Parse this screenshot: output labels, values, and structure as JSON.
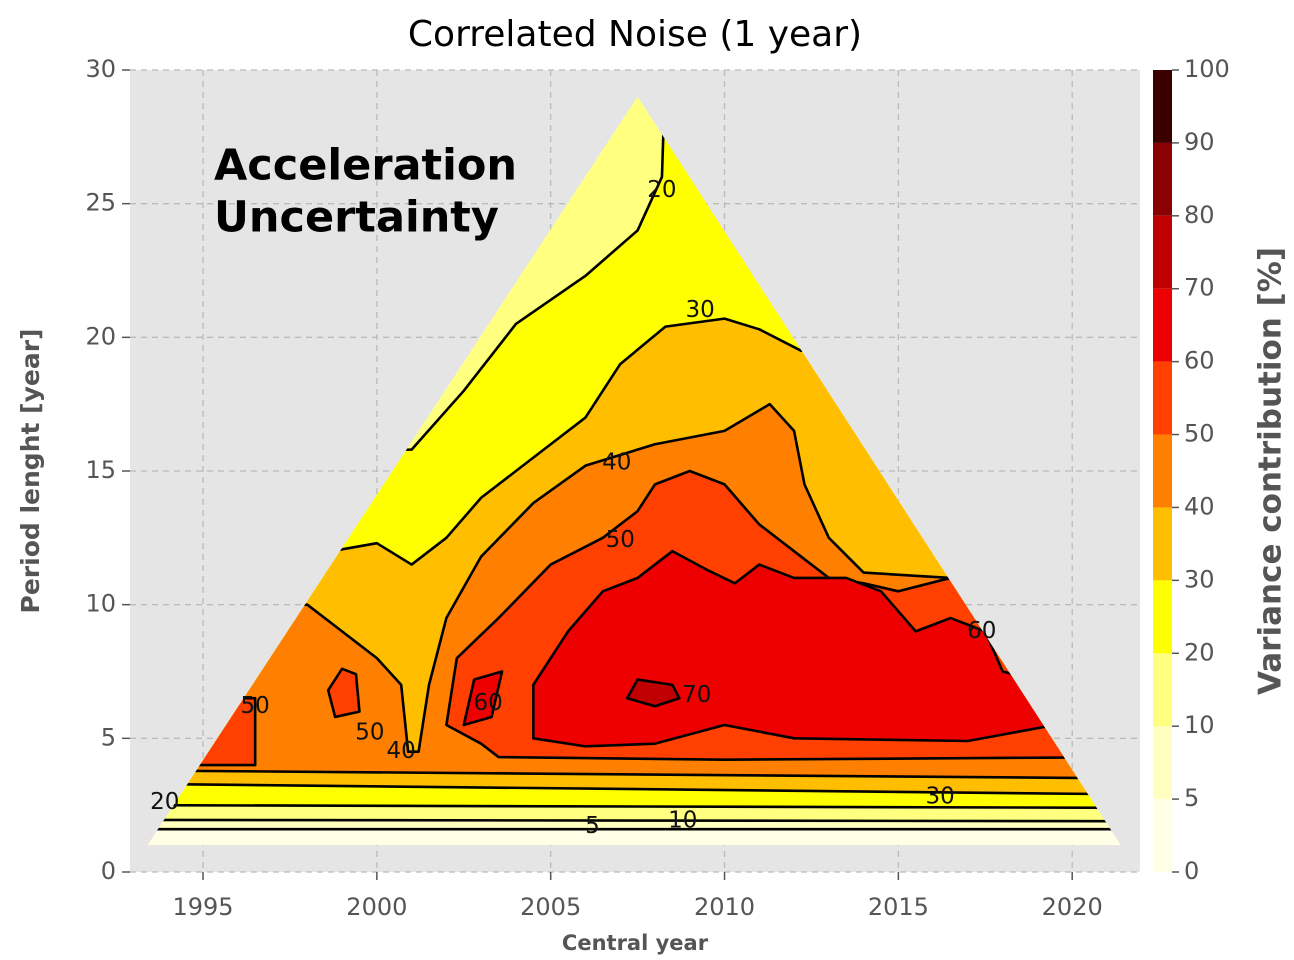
{
  "chart_data": {
    "type": "contour",
    "title": "Correlated Noise (1 year)",
    "xlabel": "Central year",
    "ylabel": "Period lenght [year]",
    "annotation": [
      "Acceleration",
      "Uncertainty"
    ],
    "xlim": [
      1992.9,
      2021.95
    ],
    "ylim": [
      0,
      30
    ],
    "xticks": [
      1995,
      2000,
      2005,
      2010,
      2015,
      2020
    ],
    "yticks": [
      0,
      5,
      10,
      15,
      20,
      25,
      30
    ],
    "grid": true,
    "levels": [
      0,
      5,
      10,
      20,
      30,
      40,
      50,
      60,
      70,
      80,
      90,
      100
    ],
    "colors": [
      "#ffffe6",
      "#ffffbf",
      "#ffff80",
      "#ffff00",
      "#ffbf00",
      "#ff8000",
      "#ff4000",
      "#ee0000",
      "#c00000",
      "#8b0000",
      "#3a0000"
    ],
    "colorbar": {
      "label": "Variance contribution [%]",
      "ticks": [
        0,
        5,
        10,
        20,
        30,
        40,
        50,
        60,
        70,
        80,
        90,
        100
      ]
    },
    "region": {
      "x": [
        1993.4,
        2007.5,
        2021.4
      ],
      "y": [
        1,
        29,
        1
      ]
    },
    "bands": [
      {
        "level": 5,
        "x": [
          1993,
          2022,
          2022,
          1993
        ],
        "y": [
          1.6,
          1.6,
          30,
          30
        ]
      },
      {
        "level": 10,
        "x": [
          1993,
          2022,
          2022,
          1993
        ],
        "y": [
          1.95,
          1.9,
          30,
          30
        ]
      },
      {
        "level": 20,
        "x": [
          1993,
          2022,
          2022,
          2008.3,
          2008.2,
          2007.5,
          2006,
          2004,
          2002.5,
          2001,
          1993
        ],
        "y": [
          2.5,
          2.4,
          30,
          30,
          26,
          24,
          22.3,
          20.5,
          18,
          15.8,
          15.8
        ]
      },
      {
        "level": 30,
        "x": [
          1993,
          2022,
          2022,
          2012.2,
          2011,
          2010,
          2008.3,
          2007,
          2006,
          2004.5,
          2003,
          2002,
          2001,
          2000,
          1998.7,
          1993
        ],
        "y": [
          3.3,
          2.9,
          19.5,
          19.5,
          20.3,
          20.7,
          20.4,
          19,
          17,
          15.5,
          14,
          12.5,
          11.5,
          12.3,
          12,
          12
        ]
      },
      {
        "level": 40,
        "x": [
          1993,
          2022,
          2022,
          2016.5,
          2014,
          2013,
          2012.3,
          2012,
          2011.3,
          2010,
          2008,
          2006,
          2004.5,
          2003,
          2002,
          2001.5,
          2001.2,
          2000.9,
          2000.7,
          2000,
          1999,
          1998,
          1993
        ],
        "y": [
          3.8,
          3.5,
          11,
          11,
          11.2,
          12.5,
          14.5,
          16.5,
          17.5,
          16.5,
          16,
          15.2,
          13.8,
          11.8,
          9.5,
          7,
          4.5,
          4.5,
          7,
          8,
          9,
          10,
          10
        ]
      },
      {
        "level": 50,
        "x": [
          2003,
          2002,
          2002.3,
          2003.5,
          2005,
          2006.5,
          2007.5,
          2008,
          2009,
          2010,
          2011,
          2012,
          2013,
          2014,
          2015,
          2016.5,
          2017,
          2018.3,
          2022,
          2022,
          2010,
          2003.5
        ],
        "y": [
          4.8,
          5.5,
          8,
          9.5,
          11.5,
          12.5,
          13.5,
          14.5,
          15,
          14.5,
          13,
          12,
          11,
          10.8,
          10.5,
          11,
          10,
          9.5,
          9,
          4.3,
          4.2,
          4.3
        ]
      },
      {
        "level": 50,
        "x": [
          1993,
          1996.5,
          1996.5,
          1993
        ],
        "y": [
          4,
          4,
          6.5,
          6.5
        ]
      },
      {
        "level": 50,
        "x": [
          1998.8,
          1999.5,
          1999.4,
          1999,
          1998.6
        ],
        "y": [
          5.8,
          6,
          7.4,
          7.6,
          6.8
        ]
      },
      {
        "level": 60,
        "x": [
          2006,
          2004.5,
          2004.5,
          2005.5,
          2006.5,
          2007.5,
          2008.5,
          2009.5,
          2010.3,
          2011,
          2012,
          2013.5,
          2014.5,
          2015.5,
          2016.5,
          2017.5,
          2018,
          2019.5,
          2022,
          2022,
          2019.5,
          2017,
          2012,
          2010,
          2008
        ],
        "y": [
          4.7,
          5,
          7,
          9,
          10.5,
          11,
          12,
          11.3,
          10.8,
          11.5,
          11,
          11,
          10.5,
          9,
          9.5,
          9,
          7.5,
          7,
          6,
          5,
          5.5,
          4.9,
          5,
          5.5,
          4.8
        ]
      },
      {
        "level": 60,
        "x": [
          2002.5,
          2003.3,
          2003.6,
          2002.8
        ],
        "y": [
          5.5,
          5.8,
          7.5,
          7.2
        ]
      },
      {
        "level": 70,
        "x": [
          2007.2,
          2007.5,
          2008.5,
          2008.7,
          2008
        ],
        "y": [
          6.5,
          7.2,
          7,
          6.5,
          6.2
        ]
      }
    ],
    "contour_labels": [
      {
        "value": 20,
        "x": 2008.2,
        "y": 25.5
      },
      {
        "value": 30,
        "x": 2009.3,
        "y": 21
      },
      {
        "value": 40,
        "x": 2006.9,
        "y": 15.3
      },
      {
        "value": 50,
        "x": 2007,
        "y": 12.4
      },
      {
        "value": 60,
        "x": 2017.4,
        "y": 9
      },
      {
        "value": 50,
        "x": 1996.5,
        "y": 6.2
      },
      {
        "value": 50,
        "x": 1999.8,
        "y": 5.2
      },
      {
        "value": 40,
        "x": 2000.7,
        "y": 4.5
      },
      {
        "value": 60,
        "x": 2003.2,
        "y": 6.3
      },
      {
        "value": 70,
        "x": 2009.2,
        "y": 6.6
      },
      {
        "value": 20,
        "x": 1993.9,
        "y": 2.6
      },
      {
        "value": 30,
        "x": 2016.2,
        "y": 2.8
      },
      {
        "value": 5,
        "x": 2006.2,
        "y": 1.7
      },
      {
        "value": 10,
        "x": 2008.8,
        "y": 1.9
      }
    ]
  }
}
